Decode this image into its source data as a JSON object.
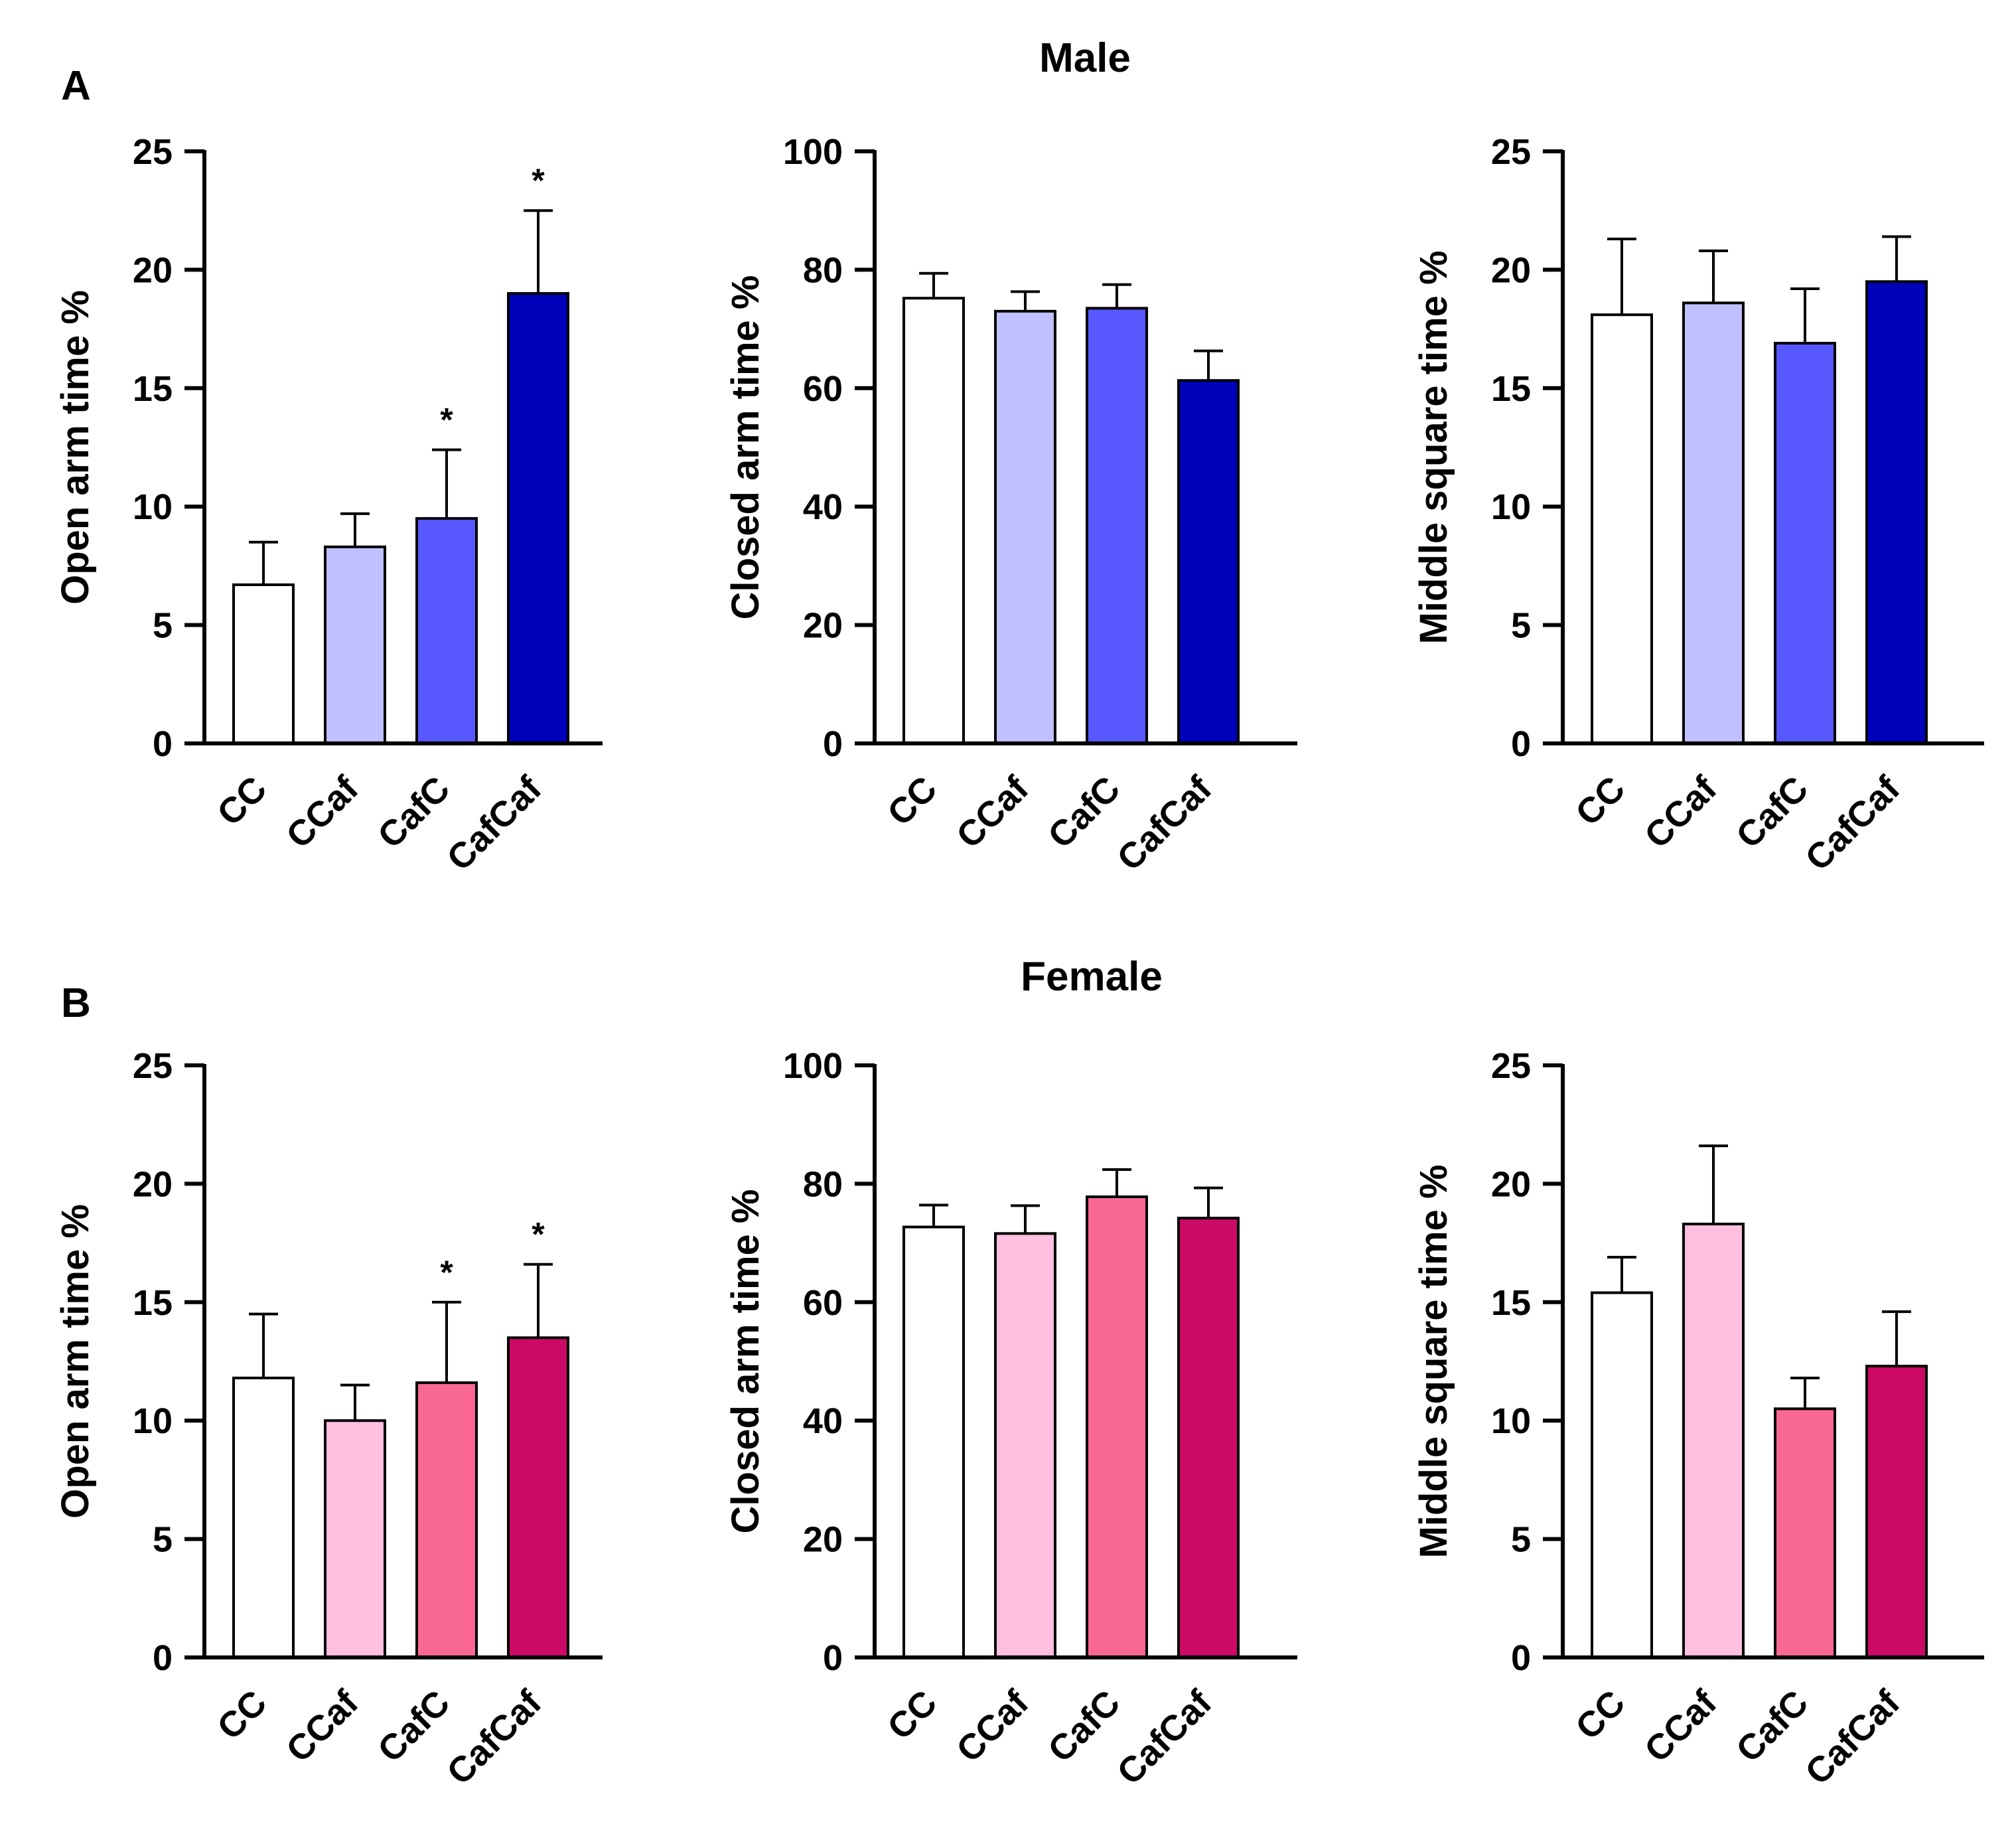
{
  "figure": {
    "panels": [
      {
        "letter": "A",
        "title": "Male"
      },
      {
        "letter": "B",
        "title": "Female"
      }
    ]
  },
  "chart_data": [
    {
      "type": "bar",
      "panel": "A",
      "group": "Male",
      "categories": [
        "CC",
        "CCaf",
        "CafC",
        "CafCaf"
      ],
      "values": [
        6.7,
        8.3,
        9.5,
        19.0
      ],
      "errors": [
        1.8,
        1.4,
        2.9,
        3.5
      ],
      "significance": [
        "",
        "",
        "*",
        "*"
      ],
      "colors": [
        "#ffffff",
        "#c0c0ff",
        "#5858ff",
        "#0000bb"
      ],
      "ylabel": "Open arm time %",
      "ylim": [
        0,
        25
      ],
      "yticks": [
        0,
        5,
        10,
        15,
        20,
        25
      ]
    },
    {
      "type": "bar",
      "panel": "A",
      "group": "Male",
      "categories": [
        "CC",
        "CCaf",
        "CafC",
        "CafCaf"
      ],
      "values": [
        75.2,
        73.0,
        73.5,
        61.3
      ],
      "errors": [
        4.2,
        3.3,
        4.0,
        5.0
      ],
      "significance": [
        "",
        "",
        "",
        ""
      ],
      "colors": [
        "#ffffff",
        "#c0c0ff",
        "#5858ff",
        "#0000bb"
      ],
      "ylabel": "Closed arm time %",
      "ylim": [
        0,
        100
      ],
      "yticks": [
        0,
        20,
        40,
        60,
        80,
        100
      ]
    },
    {
      "type": "bar",
      "panel": "A",
      "group": "Male",
      "categories": [
        "CC",
        "CCaf",
        "CafC",
        "CafCaf"
      ],
      "values": [
        18.1,
        18.6,
        16.9,
        19.5
      ],
      "errors": [
        3.2,
        2.2,
        2.3,
        1.9
      ],
      "significance": [
        "",
        "",
        "",
        ""
      ],
      "colors": [
        "#ffffff",
        "#c0c0ff",
        "#5858ff",
        "#0000bb"
      ],
      "ylabel": "Middle square time %",
      "ylim": [
        0,
        25
      ],
      "yticks": [
        0,
        5,
        10,
        15,
        20,
        25
      ]
    },
    {
      "type": "bar",
      "panel": "B",
      "group": "Female",
      "categories": [
        "CC",
        "CCaf",
        "CafC",
        "CafCaf"
      ],
      "values": [
        11.8,
        10.0,
        11.6,
        13.5
      ],
      "errors": [
        2.7,
        1.5,
        3.4,
        3.1
      ],
      "significance": [
        "",
        "",
        "*",
        "*"
      ],
      "colors": [
        "#ffffff",
        "#ffbfe0",
        "#f96894",
        "#cc0a66"
      ],
      "ylabel": "Open arm time %",
      "ylim": [
        0,
        25
      ],
      "yticks": [
        0,
        5,
        10,
        15,
        20,
        25
      ]
    },
    {
      "type": "bar",
      "panel": "B",
      "group": "Female",
      "categories": [
        "CC",
        "CCaf",
        "CafC",
        "CafCaf"
      ],
      "values": [
        72.7,
        71.6,
        77.8,
        74.2
      ],
      "errors": [
        3.7,
        4.7,
        4.6,
        5.1
      ],
      "significance": [
        "",
        "",
        "",
        ""
      ],
      "colors": [
        "#ffffff",
        "#ffbfe0",
        "#f96894",
        "#cc0a66"
      ],
      "ylabel": "Closed arm time %",
      "ylim": [
        0,
        100
      ],
      "yticks": [
        0,
        20,
        40,
        60,
        80,
        100
      ]
    },
    {
      "type": "bar",
      "panel": "B",
      "group": "Female",
      "categories": [
        "CC",
        "CCaf",
        "CafC",
        "CafCaf"
      ],
      "values": [
        15.4,
        18.3,
        10.5,
        12.3
      ],
      "errors": [
        1.5,
        3.3,
        1.3,
        2.3
      ],
      "significance": [
        "",
        "",
        "",
        ""
      ],
      "colors": [
        "#ffffff",
        "#ffbfe0",
        "#f96894",
        "#cc0a66"
      ],
      "ylabel": "Middle square time %",
      "ylim": [
        0,
        25
      ],
      "yticks": [
        0,
        5,
        10,
        15,
        20,
        25
      ]
    }
  ]
}
